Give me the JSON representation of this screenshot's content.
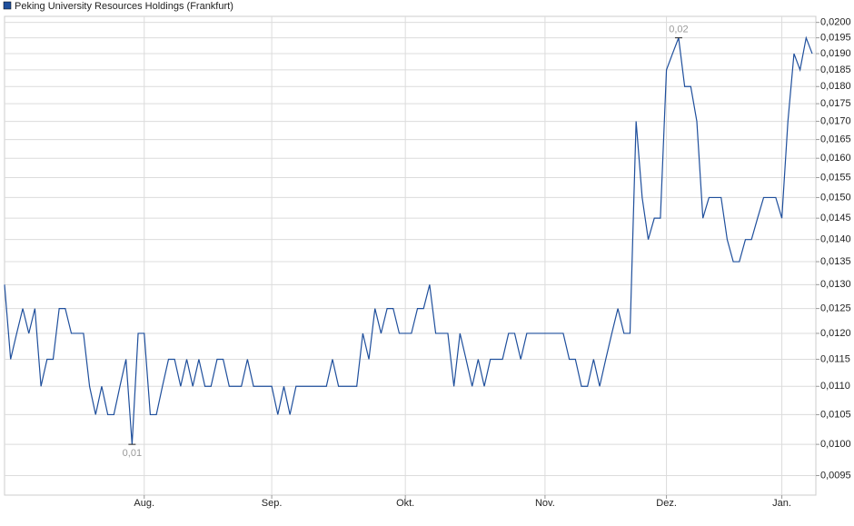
{
  "chart_data": {
    "type": "line",
    "categories": [
      null,
      null,
      null,
      null,
      null,
      null,
      null,
      null,
      null,
      null,
      null,
      null,
      null,
      null,
      null,
      null,
      null,
      null,
      null,
      null,
      null,
      null,
      null,
      "Aug.",
      null,
      null,
      null,
      null,
      null,
      null,
      null,
      null,
      null,
      null,
      null,
      null,
      null,
      null,
      null,
      null,
      null,
      null,
      null,
      null,
      "Sep.",
      null,
      null,
      null,
      null,
      null,
      null,
      null,
      null,
      null,
      null,
      null,
      null,
      null,
      null,
      null,
      null,
      null,
      null,
      null,
      null,
      null,
      "Okt.",
      null,
      null,
      null,
      null,
      null,
      null,
      null,
      null,
      null,
      null,
      null,
      null,
      null,
      null,
      null,
      null,
      null,
      null,
      null,
      null,
      null,
      null,
      "Nov.",
      null,
      null,
      null,
      null,
      null,
      null,
      null,
      null,
      null,
      null,
      null,
      null,
      null,
      null,
      null,
      null,
      null,
      null,
      null,
      "Dez.",
      null,
      null,
      null,
      null,
      null,
      null,
      null,
      null,
      null,
      null,
      null,
      null,
      null,
      null,
      null,
      null,
      null,
      null,
      "Jan.",
      null,
      null,
      null,
      null,
      null
    ],
    "series": [
      {
        "name": "Peking University Resources Holdings (Frankfurt)",
        "color": "#1f4f9c",
        "values": [
          0.013,
          0.0115,
          0.012,
          0.0125,
          0.012,
          0.0125,
          0.011,
          0.0115,
          0.0115,
          0.0125,
          0.0125,
          0.012,
          0.012,
          0.012,
          0.011,
          0.0105,
          0.011,
          0.0105,
          0.0105,
          0.011,
          0.0115,
          0.01,
          0.012,
          0.012,
          0.0105,
          0.0105,
          0.011,
          0.0115,
          0.0115,
          0.011,
          0.0115,
          0.011,
          0.0115,
          0.011,
          0.011,
          0.0115,
          0.0115,
          0.011,
          0.011,
          0.011,
          0.0115,
          0.011,
          0.011,
          0.011,
          0.011,
          0.0105,
          0.011,
          0.0105,
          0.011,
          0.011,
          0.011,
          0.011,
          0.011,
          0.011,
          0.0115,
          0.011,
          0.011,
          0.011,
          0.011,
          0.012,
          0.0115,
          0.0125,
          0.012,
          0.0125,
          0.0125,
          0.012,
          0.012,
          0.012,
          0.0125,
          0.0125,
          0.013,
          0.012,
          0.012,
          0.012,
          0.011,
          0.012,
          0.0115,
          0.011,
          0.0115,
          0.011,
          0.0115,
          0.0115,
          0.0115,
          0.012,
          0.012,
          0.0115,
          0.012,
          0.012,
          0.012,
          0.012,
          0.012,
          0.012,
          0.012,
          0.0115,
          0.0115,
          0.011,
          0.011,
          0.0115,
          0.011,
          0.0115,
          0.012,
          0.0125,
          0.012,
          0.012,
          0.017,
          0.015,
          0.014,
          0.0145,
          0.0145,
          0.0185,
          0.019,
          0.0195,
          0.018,
          0.018,
          0.017,
          0.0145,
          0.015,
          0.015,
          0.015,
          0.014,
          0.0135,
          0.0135,
          0.014,
          0.014,
          0.0145,
          0.015,
          0.015,
          0.015,
          0.0145,
          0.017,
          0.019,
          0.0185,
          0.0195,
          0.019
        ],
        "value_labels": [
          null,
          null,
          null,
          null,
          null,
          null,
          null,
          null,
          null,
          null,
          null,
          null,
          null,
          null,
          null,
          null,
          null,
          null,
          null,
          null,
          null,
          "0,01",
          null,
          null,
          null,
          null,
          null,
          null,
          null,
          null,
          null,
          null,
          null,
          null,
          null,
          null,
          null,
          null,
          null,
          null,
          null,
          null,
          null,
          null,
          null,
          null,
          null,
          null,
          null,
          null,
          null,
          null,
          null,
          null,
          null,
          null,
          null,
          null,
          null,
          null,
          null,
          null,
          null,
          null,
          null,
          null,
          null,
          null,
          null,
          null,
          null,
          null,
          null,
          null,
          null,
          null,
          null,
          null,
          null,
          null,
          null,
          null,
          null,
          null,
          null,
          null,
          null,
          null,
          null,
          null,
          null,
          null,
          null,
          null,
          null,
          null,
          null,
          null,
          null,
          null,
          null,
          null,
          null,
          null,
          null,
          null,
          null,
          null,
          null,
          null,
          null,
          "0,02",
          null,
          null,
          null,
          null,
          null,
          null,
          null,
          null,
          null,
          null,
          null,
          null,
          null,
          null,
          null,
          null,
          null,
          null,
          null,
          null,
          null,
          null
        ]
      }
    ],
    "ylim": [
      0.0092,
      0.0202
    ],
    "log_y": true,
    "grid": true,
    "legend": "top-left",
    "yticks": [
      {
        "value": 0.0095,
        "label": "0,0095"
      },
      {
        "value": 0.01,
        "label": "0,0100"
      },
      {
        "value": 0.0105,
        "label": "0,0105"
      },
      {
        "value": 0.011,
        "label": "0,0110"
      },
      {
        "value": 0.0115,
        "label": "0,0115"
      },
      {
        "value": 0.012,
        "label": "0,0120"
      },
      {
        "value": 0.0125,
        "label": "0,0125"
      },
      {
        "value": 0.013,
        "label": "0,0130"
      },
      {
        "value": 0.0135,
        "label": "0,0135"
      },
      {
        "value": 0.014,
        "label": "0,0140"
      },
      {
        "value": 0.0145,
        "label": "0,0145"
      },
      {
        "value": 0.015,
        "label": "0,0150"
      },
      {
        "value": 0.0155,
        "label": "0,0155"
      },
      {
        "value": 0.016,
        "label": "0,0160"
      },
      {
        "value": 0.0165,
        "label": "0,0165"
      },
      {
        "value": 0.017,
        "label": "0,0170"
      },
      {
        "value": 0.0175,
        "label": "0,0175"
      },
      {
        "value": 0.018,
        "label": "0,0180"
      },
      {
        "value": 0.0185,
        "label": "0,0185"
      },
      {
        "value": 0.019,
        "label": "0,0190"
      },
      {
        "value": 0.0195,
        "label": "0,0195"
      },
      {
        "value": 0.02,
        "label": "0,0200"
      }
    ]
  }
}
